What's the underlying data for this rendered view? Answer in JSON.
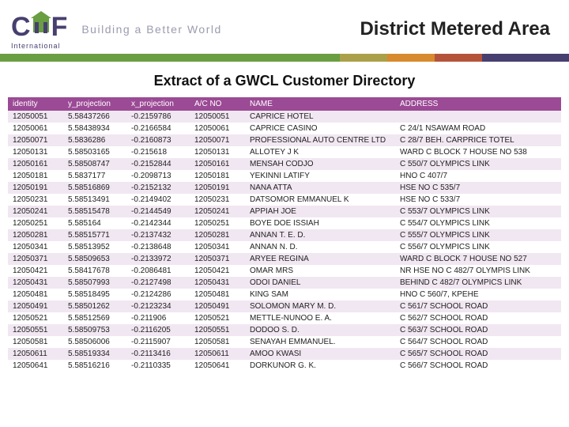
{
  "org": {
    "name_letters": [
      "C",
      "H",
      "F"
    ],
    "subtext": "International",
    "tagline": "Building a Better World"
  },
  "title": "District Metered Area",
  "subtitle": "Extract of a GWCL Customer Directory",
  "colors": {
    "brand_purple": "#473f6f",
    "brand_green": "#6a9e42",
    "bar": [
      "#6a9e42",
      "#aba04a",
      "#d88a2e",
      "#b5533a",
      "#473f6f"
    ],
    "table_header_bg": "#9b4a95",
    "row_alt_bg": "#f1e7f2",
    "background": "#ffffff"
  },
  "table": {
    "columns": [
      "identity",
      "y_projection",
      "x_projection",
      "A/C NO",
      "NAME",
      "ADDRESS"
    ],
    "rows": [
      [
        "12050051",
        "5.58437266",
        "-0.2159786",
        "12050051",
        "CAPRICE HOTEL",
        ""
      ],
      [
        "12050061",
        "5.58438934",
        "-0.2166584",
        "12050061",
        "CAPRICE CASINO",
        "C 24/1 NSAWAM ROAD"
      ],
      [
        "12050071",
        "5.5836286",
        "-0.2160873",
        "12050071",
        "PROFESSIONAL AUTO CENTRE LTD",
        "C 28/7 BEH. CARPRICE TOTEL"
      ],
      [
        "12050131",
        "5.58503165",
        "-0.215618",
        "12050131",
        "ALLOTEY J K",
        "WARD C BLOCK 7 HOUSE NO 538"
      ],
      [
        "12050161",
        "5.58508747",
        "-0.2152844",
        "12050161",
        "MENSAH CODJO",
        "C 550/7 OLYMPICS LINK"
      ],
      [
        "12050181",
        "5.5837177",
        "-0.2098713",
        "12050181",
        "YEKINNI LATIFY",
        "HNO C 407/7"
      ],
      [
        "12050191",
        "5.58516869",
        "-0.2152132",
        "12050191",
        "NANA ATTA",
        "HSE NO C 535/7"
      ],
      [
        "12050231",
        "5.58513491",
        "-0.2149402",
        "12050231",
        "DATSOMOR EMMANUEL K",
        "HSE NO C 533/7"
      ],
      [
        "12050241",
        "5.58515478",
        "-0.2144549",
        "12050241",
        "APPIAH JOE",
        "C 553/7 OLYMPICS LINK"
      ],
      [
        "12050251",
        "5.585164",
        "-0.2142344",
        "12050251",
        "BOYE DOE ISSIAH",
        "C 554/7 OLYMPICS LINK"
      ],
      [
        "12050281",
        "5.58515771",
        "-0.2137432",
        "12050281",
        "ANNAN T. E. D.",
        "C 555/7 OLYMPICS LINK"
      ],
      [
        "12050341",
        "5.58513952",
        "-0.2138648",
        "12050341",
        "ANNAN N. D.",
        "C 556/7 OLYMPICS LINK"
      ],
      [
        "12050371",
        "5.58509653",
        "-0.2133972",
        "12050371",
        "ARYEE REGINA",
        "WARD C BLOCK 7 HOUSE NO 527"
      ],
      [
        "12050421",
        "5.58417678",
        "-0.2086481",
        "12050421",
        "OMAR MRS",
        "NR HSE NO C 482/7 OLYMPIS LINK"
      ],
      [
        "12050431",
        "5.58507993",
        "-0.2127498",
        "12050431",
        "ODOI DANIEL",
        "BEHIND C 482/7 OLYMPICS LINK"
      ],
      [
        "12050481",
        "5.58518495",
        "-0.2124286",
        "12050481",
        "KING SAM",
        "HNO C 560/7, KPEHE"
      ],
      [
        "12050491",
        "5.58501262",
        "-0.2123234",
        "12050491",
        "SOLOMON MARY M. D.",
        "C 561/7 SCHOOL ROAD"
      ],
      [
        "12050521",
        "5.58512569",
        "-0.211906",
        "12050521",
        "METTLE-NUNOO E. A.",
        "C 562/7 SCHOOL ROAD"
      ],
      [
        "12050551",
        "5.58509753",
        "-0.2116205",
        "12050551",
        "DODOO S. D.",
        "C 563/7 SCHOOL ROAD"
      ],
      [
        "12050581",
        "5.58506006",
        "-0.2115907",
        "12050581",
        "SENAYAH EMMANUEL.",
        "C 564/7 SCHOOL ROAD"
      ],
      [
        "12050611",
        "5.58519334",
        "-0.2113416",
        "12050611",
        "AMOO KWASI",
        "C 565/7 SCHOOL ROAD"
      ],
      [
        "12050641",
        "5.58516216",
        "-0.2110335",
        "12050641",
        "DORKUNOR G. K.",
        "C 566/7 SCHOOL ROAD"
      ]
    ]
  }
}
